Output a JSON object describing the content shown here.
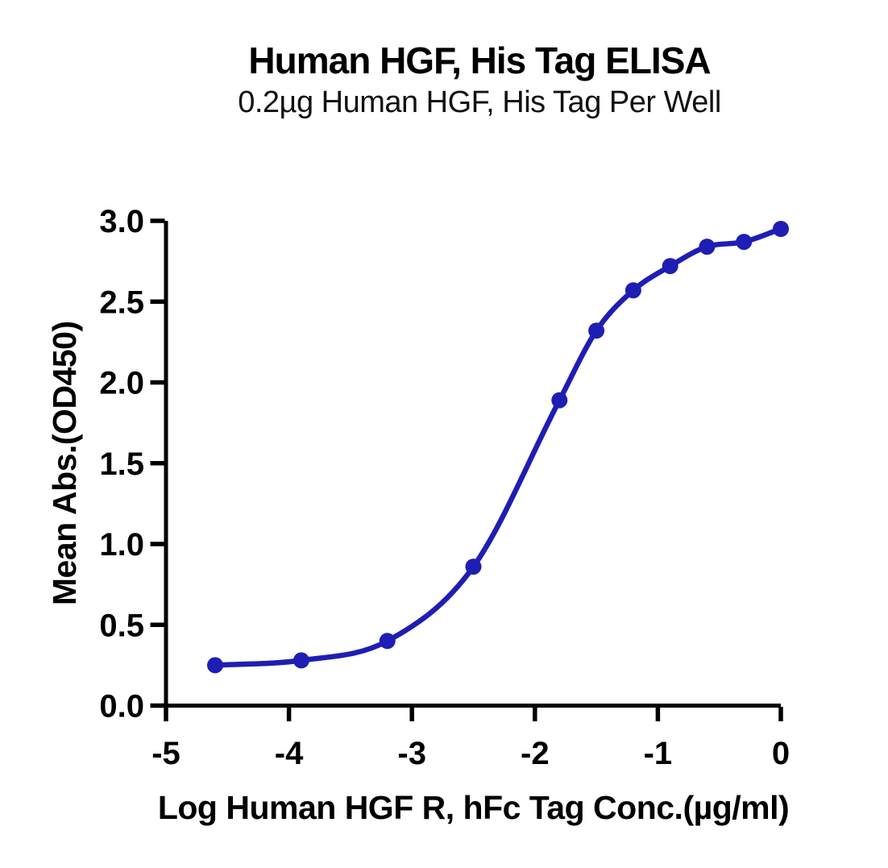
{
  "colors": {
    "background": "#ffffff",
    "axis": "#000000",
    "text": "#000000",
    "curve_blue": "#1e1eb4"
  },
  "chart_data": {
    "type": "line",
    "title": "Human HGF, His Tag ELISA",
    "subtitle": "0.2µg Human HGF, His Tag Per Well",
    "xlabel": "Log Human HGF R, hFc Tag Conc.(µg/ml)",
    "ylabel": "Mean Abs.(OD450)",
    "xlim": [
      -5,
      0
    ],
    "ylim": [
      0,
      3
    ],
    "grid": false,
    "legend": null,
    "curve_style": "smooth sigmoid fit through points",
    "xticks": [
      {
        "value": -5,
        "label": "-5"
      },
      {
        "value": -4,
        "label": "-4"
      },
      {
        "value": -3,
        "label": "-3"
      },
      {
        "value": -2,
        "label": "-2"
      },
      {
        "value": -1,
        "label": "-1"
      },
      {
        "value": 0,
        "label": "0"
      }
    ],
    "yticks": [
      {
        "value": 0.0,
        "label": "0.0"
      },
      {
        "value": 0.5,
        "label": "0.5"
      },
      {
        "value": 1.0,
        "label": "1.0"
      },
      {
        "value": 1.5,
        "label": "1.5"
      },
      {
        "value": 2.0,
        "label": "2.0"
      },
      {
        "value": 2.5,
        "label": "2.5"
      },
      {
        "value": 3.0,
        "label": "3.0"
      }
    ],
    "series": [
      {
        "color": "#1e1eb4",
        "marker": "circle",
        "x": [
          -4.6,
          -3.9,
          -3.2,
          -2.5,
          -1.8,
          -1.5,
          -1.2,
          -0.9,
          -0.6,
          -0.3,
          0.0
        ],
        "y": [
          0.25,
          0.28,
          0.4,
          0.86,
          1.89,
          2.32,
          2.57,
          2.72,
          2.84,
          2.87,
          2.95
        ]
      }
    ]
  }
}
